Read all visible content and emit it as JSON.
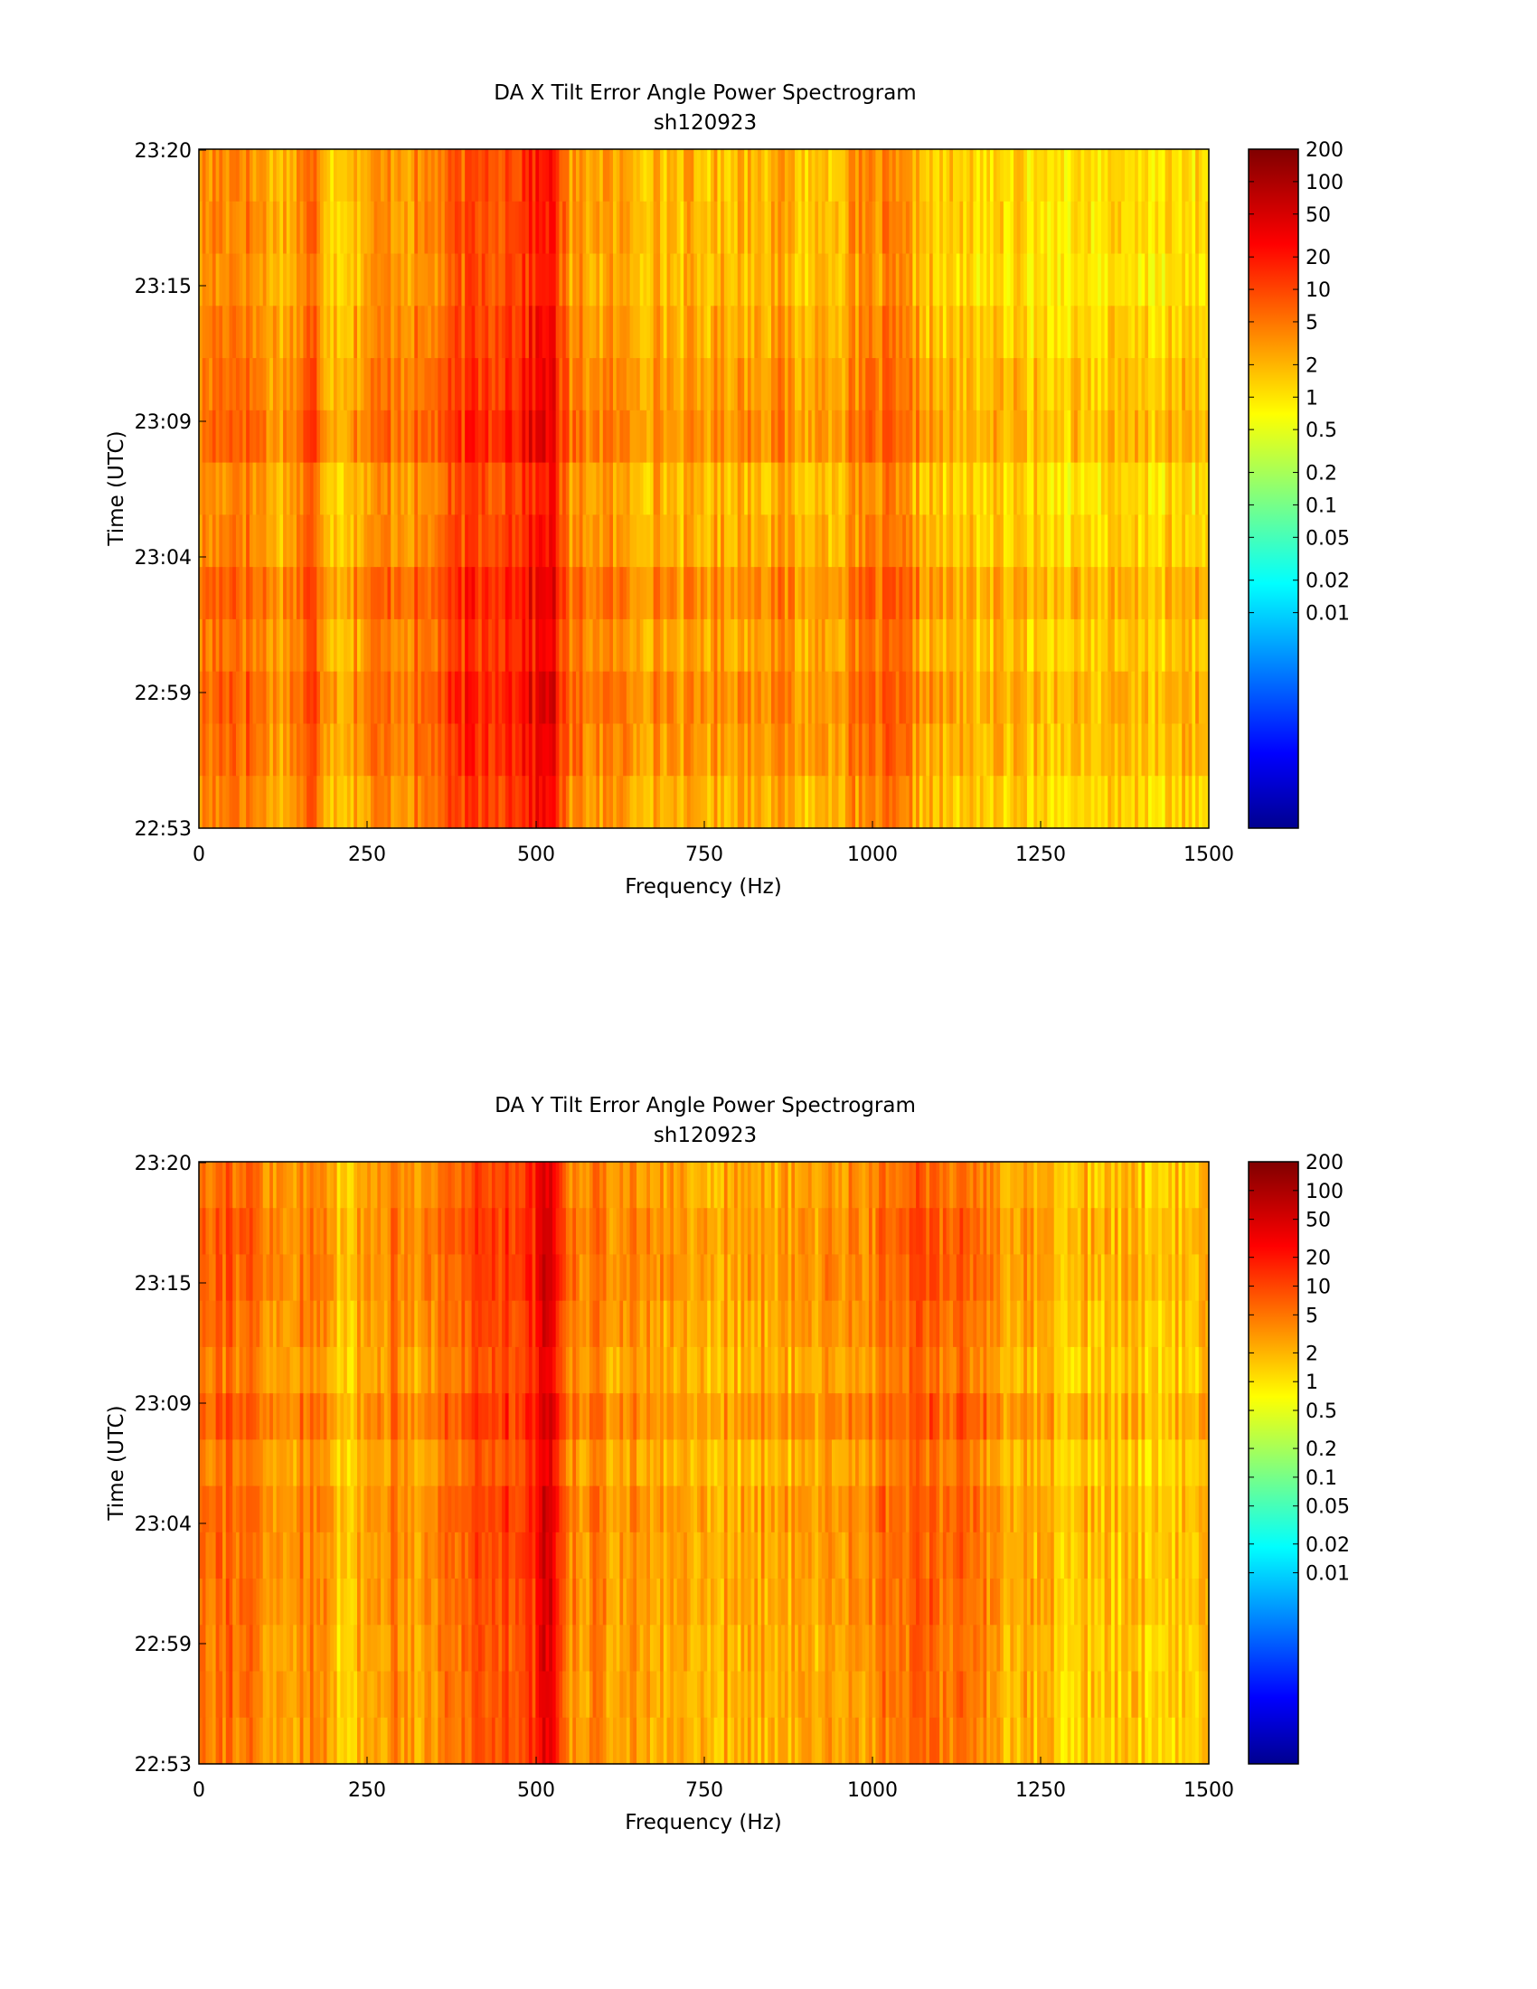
{
  "chart_data": [
    {
      "type": "heatmap",
      "title": "DA X Tilt Error Angle Power Spectrogram",
      "subtitle": "sh120923",
      "xlabel": "Frequency (Hz)",
      "ylabel": "Time (UTC)",
      "xlim": [
        0,
        1500
      ],
      "x_ticks": [
        "0",
        "250",
        "500",
        "750",
        "1000",
        "1250",
        "1500"
      ],
      "y_ticks": [
        "22:53",
        "22:59",
        "23:04",
        "23:09",
        "23:15",
        "23:20"
      ],
      "colorbar": {
        "scale": "log",
        "range": [
          0.0001,
          200
        ],
        "tick_values": [
          200,
          100,
          50,
          20,
          10,
          5,
          2,
          1,
          0.5,
          0.2,
          0.1,
          0.05,
          0.02,
          0.01
        ],
        "tick_labels": [
          "200",
          "100",
          "50",
          "20",
          "10",
          "5",
          "2",
          "1",
          "0.5",
          "0.2",
          "0.1",
          "0.05",
          "0.02",
          "0.01"
        ]
      },
      "time_rows": 13,
      "frequency_profile": [
        {
          "f": 0,
          "v": 5
        },
        {
          "f": 60,
          "v": 8
        },
        {
          "f": 120,
          "v": 3
        },
        {
          "f": 170,
          "v": 9
        },
        {
          "f": 200,
          "v": 2.5
        },
        {
          "f": 250,
          "v": 4
        },
        {
          "f": 290,
          "v": 6
        },
        {
          "f": 330,
          "v": 5
        },
        {
          "f": 400,
          "v": 14
        },
        {
          "f": 460,
          "v": 18
        },
        {
          "f": 500,
          "v": 25
        },
        {
          "f": 520,
          "v": 45
        },
        {
          "f": 550,
          "v": 5
        },
        {
          "f": 650,
          "v": 3.5
        },
        {
          "f": 750,
          "v": 3
        },
        {
          "f": 860,
          "v": 4
        },
        {
          "f": 900,
          "v": 2.5
        },
        {
          "f": 1025,
          "v": 6
        },
        {
          "f": 1100,
          "v": 2.2
        },
        {
          "f": 1250,
          "v": 1.8
        },
        {
          "f": 1400,
          "v": 1.6
        },
        {
          "f": 1500,
          "v": 2
        }
      ]
    },
    {
      "type": "heatmap",
      "title": "DA Y Tilt Error Angle Power Spectrogram",
      "subtitle": "sh120923",
      "xlabel": "Frequency (Hz)",
      "ylabel": "Time (UTC)",
      "xlim": [
        0,
        1500
      ],
      "x_ticks": [
        "0",
        "250",
        "500",
        "750",
        "1000",
        "1250",
        "1500"
      ],
      "y_ticks": [
        "22:53",
        "22:59",
        "23:04",
        "23:09",
        "23:15",
        "23:20"
      ],
      "colorbar": {
        "scale": "log",
        "range": [
          0.0001,
          200
        ],
        "tick_values": [
          200,
          100,
          50,
          20,
          10,
          5,
          2,
          1,
          0.5,
          0.2,
          0.1,
          0.05,
          0.02,
          0.01
        ],
        "tick_labels": [
          "200",
          "100",
          "50",
          "20",
          "10",
          "5",
          "2",
          "1",
          "0.5",
          "0.2",
          "0.1",
          "0.05",
          "0.02",
          "0.01"
        ]
      },
      "time_rows": 13,
      "frequency_profile": [
        {
          "f": 0,
          "v": 9
        },
        {
          "f": 60,
          "v": 8
        },
        {
          "f": 120,
          "v": 3
        },
        {
          "f": 170,
          "v": 7
        },
        {
          "f": 200,
          "v": 2
        },
        {
          "f": 250,
          "v": 3
        },
        {
          "f": 290,
          "v": 6
        },
        {
          "f": 330,
          "v": 4
        },
        {
          "f": 400,
          "v": 10
        },
        {
          "f": 460,
          "v": 14
        },
        {
          "f": 500,
          "v": 20
        },
        {
          "f": 520,
          "v": 60
        },
        {
          "f": 550,
          "v": 6
        },
        {
          "f": 650,
          "v": 3.5
        },
        {
          "f": 750,
          "v": 3
        },
        {
          "f": 900,
          "v": 3
        },
        {
          "f": 1000,
          "v": 5
        },
        {
          "f": 1050,
          "v": 9
        },
        {
          "f": 1100,
          "v": 7
        },
        {
          "f": 1150,
          "v": 8
        },
        {
          "f": 1200,
          "v": 3
        },
        {
          "f": 1300,
          "v": 2.2
        },
        {
          "f": 1500,
          "v": 2
        }
      ]
    }
  ]
}
